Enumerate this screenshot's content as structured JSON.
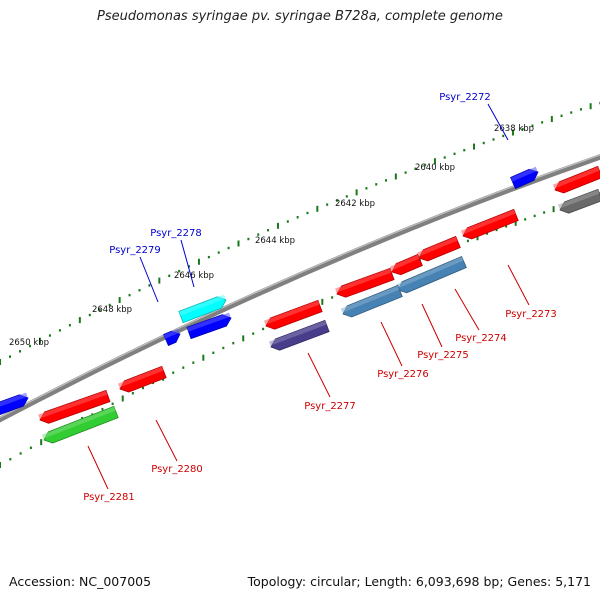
{
  "title": "Pseudomonas syringae pv. syringae B728a, complete genome",
  "footer": {
    "accession": "Accession: NC_007005",
    "stats": "Topology: circular; Length: 6,093,698 bp; Genes: 5,171"
  },
  "colors": {
    "backbone": "#808080",
    "scale_ticks": "#1a7a1a",
    "label_forward": "#0000cc",
    "label_reverse": "#cc0000",
    "gene_red": "#ff0000",
    "gene_blue": "#0000ff",
    "gene_cyan": "#00ffff",
    "gene_steelblue": "#4682b4",
    "gene_slate": "#483d8b",
    "gene_green": "#32cd32",
    "gene_gray": "#696969"
  },
  "scale": {
    "upper": [
      "2638 kbp",
      "2640 kbp",
      "2642 kbp",
      "2644 kbp",
      "2646 kbp",
      "2648 kbp",
      "2650 kbp"
    ]
  },
  "gene_labels": [
    {
      "name": "Psyr_2272",
      "strand": "forward"
    },
    {
      "name": "Psyr_2273",
      "strand": "reverse"
    },
    {
      "name": "Psyr_2274",
      "strand": "reverse"
    },
    {
      "name": "Psyr_2275",
      "strand": "reverse"
    },
    {
      "name": "Psyr_2276",
      "strand": "reverse"
    },
    {
      "name": "Psyr_2277",
      "strand": "reverse"
    },
    {
      "name": "Psyr_2278",
      "strand": "forward"
    },
    {
      "name": "Psyr_2279",
      "strand": "forward"
    },
    {
      "name": "Psyr_2280",
      "strand": "reverse"
    },
    {
      "name": "Psyr_2281",
      "strand": "reverse"
    }
  ]
}
